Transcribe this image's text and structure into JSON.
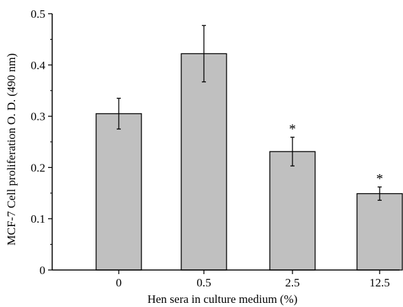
{
  "chart_data": {
    "type": "bar",
    "xlabel": "Hen sera in culture medium (%)",
    "ylabel": "MCF-7 Cell proliferation O. D. (490 nm)",
    "categories": [
      "0",
      "0.5",
      "2.5",
      "12.5"
    ],
    "values": [
      0.305,
      0.422,
      0.231,
      0.149
    ],
    "errors": [
      0.03,
      0.055,
      0.028,
      0.013
    ],
    "annotations": [
      "",
      "",
      "*",
      "*"
    ],
    "ylim": [
      0,
      0.5
    ],
    "yticks": [
      0,
      0.1,
      0.2,
      0.3,
      0.4,
      0.5
    ],
    "ytick_labels": [
      "0",
      "0.1",
      "0.2",
      "0.3",
      "0.4",
      "0.5"
    ],
    "grid": false,
    "legend": "none",
    "bar_color": "#c0c0c0"
  }
}
